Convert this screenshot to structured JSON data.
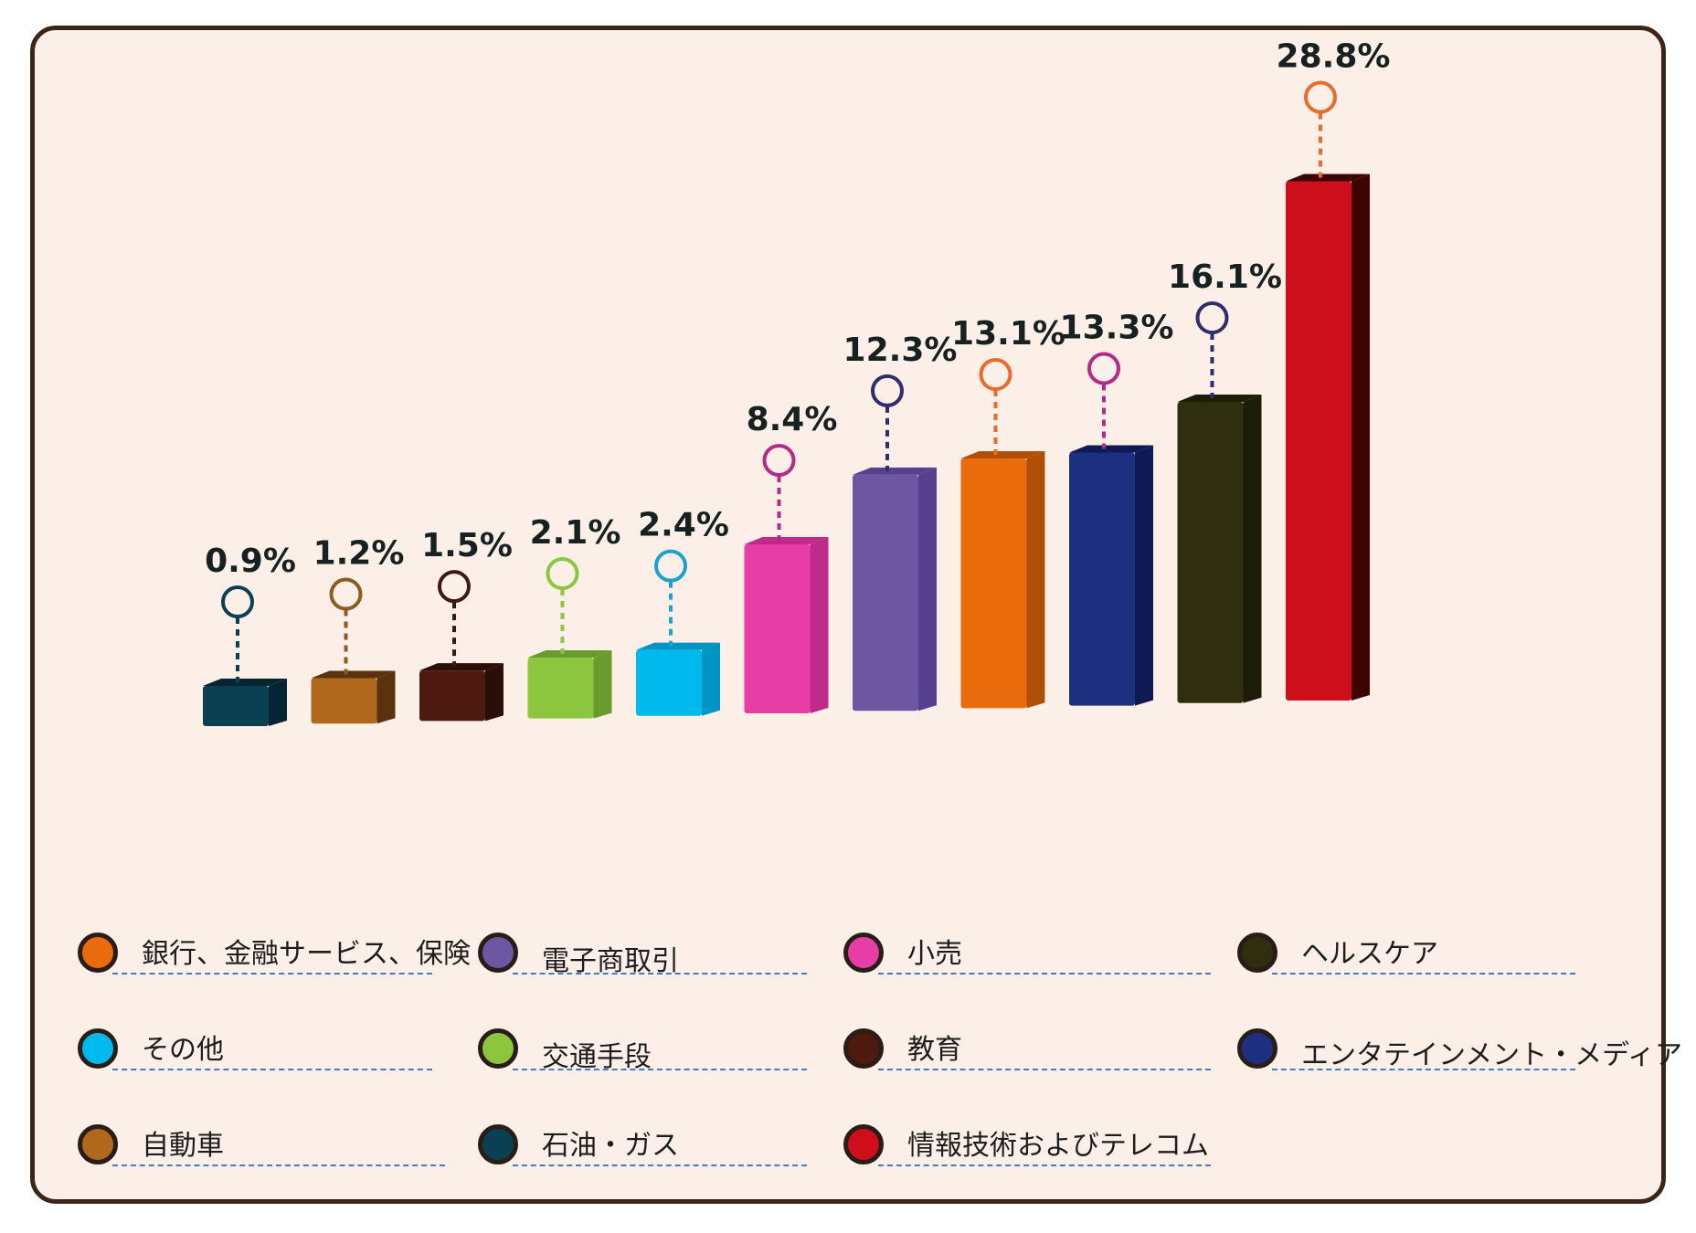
{
  "chart_data": {
    "type": "bar",
    "title": "",
    "xlabel": "",
    "ylabel": "",
    "ylim": [
      0,
      32
    ],
    "grid": false,
    "legend_placement": "bottom",
    "categories": [
      "石油・ガス",
      "自動車",
      "教育",
      "交通手段",
      "その他",
      "小売",
      "電子商取引",
      "銀行、金融サービス、保険",
      "エンタテインメント・メディア",
      "ヘルスケア",
      "情報技術およびテレコム"
    ],
    "values": [
      0.9,
      1.2,
      1.5,
      2.1,
      2.4,
      8.4,
      12.3,
      13.1,
      13.3,
      16.1,
      28.8
    ],
    "value_labels": [
      "0.9%",
      "1.2%",
      "1.5%",
      "2.1%",
      "2.4%",
      "8.4%",
      "12.3%",
      "13.1%",
      "13.3%",
      "16.1%",
      "28.8%"
    ],
    "colors": [
      "#0b3f52",
      "#b0691c",
      "#4e1a10",
      "#8cc63f",
      "#00b9ec",
      "#e73ea5",
      "#6d57a3",
      "#e96b0c",
      "#1d2f80",
      "#2f2f10",
      "#cc0f1a"
    ],
    "side_colors": [
      "#062532",
      "#5a3210",
      "#2a0e08",
      "#6a9b2e",
      "#0095c4",
      "#c02a88",
      "#574090",
      "#b14f08",
      "#0f1a55",
      "#1c1c08",
      "#3e0303"
    ],
    "marker_colors": [
      "#0b3f52",
      "#8e5a1e",
      "#3b1a12",
      "#8cc63f",
      "#1da2cf",
      "#b52a86",
      "#2f2d6a",
      "#e96b2a",
      "#b52a86",
      "#2f2d6a",
      "#e96b2a"
    ]
  },
  "legend": {
    "items": [
      {
        "label": "銀行、金融サービス、保険",
        "color": "#e96b0c"
      },
      {
        "label": "電子商取引",
        "color": "#6d57a3"
      },
      {
        "label": "小売",
        "color": "#e73ea5"
      },
      {
        "label": "ヘルスケア",
        "color": "#2f2f10"
      },
      {
        "label": "その他",
        "color": "#00b9ec"
      },
      {
        "label": "交通手段",
        "color": "#8cc63f"
      },
      {
        "label": "教育",
        "color": "#4e1a10"
      },
      {
        "label": "エンタテインメント・メディア",
        "color": "#1d2f80"
      },
      {
        "label": "自動車",
        "color": "#b0691c"
      },
      {
        "label": "石油・ガス",
        "color": "#0b3f52"
      },
      {
        "label": "情報技術およびテレコム",
        "color": "#cc0f1a"
      }
    ]
  }
}
